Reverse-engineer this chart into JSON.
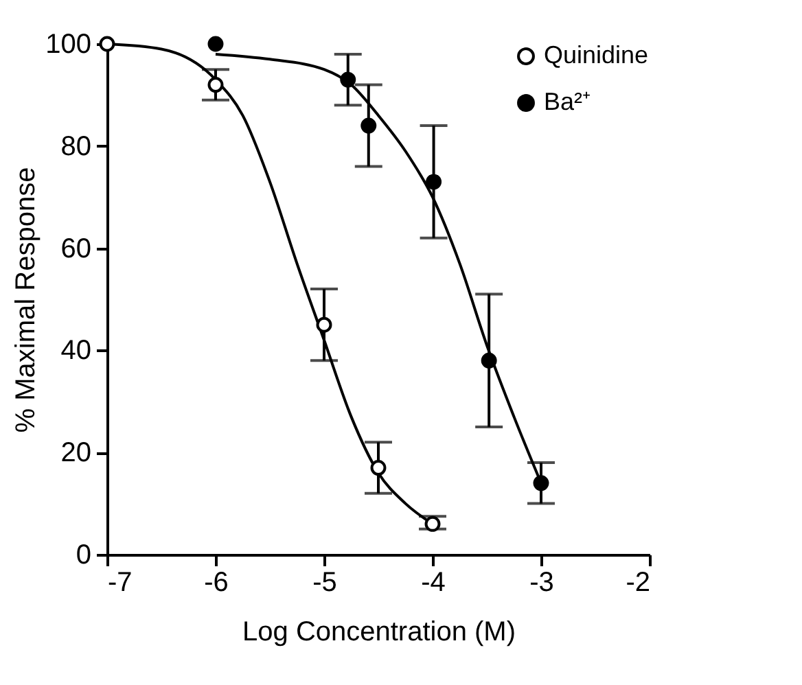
{
  "chart_data": {
    "type": "scatter",
    "xlabel": "Log Concentration (M)",
    "ylabel": "% Maximal Response",
    "xlim": [
      -7,
      -2
    ],
    "xticks": [
      -7,
      -6,
      -5,
      -4,
      -3,
      -2
    ],
    "ylim": [
      0,
      100
    ],
    "yticks": [
      0,
      20,
      40,
      60,
      80,
      100
    ],
    "grid": false,
    "legend": "top right",
    "series": [
      {
        "name": "Quinidine",
        "color": "#000000",
        "marker": "circle",
        "x": [
          -7,
          -6,
          -5,
          -4.5,
          -4
        ],
        "values": [
          100,
          92,
          45,
          17,
          6
        ],
        "errors": [
          null,
          [
            89,
            95
          ],
          [
            38,
            52
          ],
          [
            12,
            22
          ],
          [
            5,
            7.5
          ]
        ]
      },
      {
        "name": "Ba²⁺",
        "color": "#000000",
        "marker": "circle",
        "x": [
          -6,
          -4.78,
          -4.59,
          -3.99,
          -3.48,
          -3.0
        ],
        "values": [
          100,
          93,
          84,
          73,
          38,
          14
        ],
        "errors": [
          null,
          [
            88,
            98
          ],
          [
            76,
            92
          ],
          [
            62,
            84
          ],
          [
            25,
            51
          ],
          [
            10,
            18
          ]
        ]
      },
      {
        "type": "line",
        "marker": "none",
        "color": "#000000",
        "x": [
          -7,
          -6.5,
          -6,
          -5.75,
          -5.5,
          -5.25,
          -5,
          -4.75,
          -4.5,
          -4.25,
          -4
        ],
        "values": [
          100,
          99,
          93,
          86,
          73,
          57,
          42,
          27,
          16,
          10,
          6
        ]
      },
      {
        "type": "line",
        "marker": "none",
        "color": "#000000",
        "x": [
          -6,
          -5.5,
          -5,
          -4.75,
          -4.5,
          -4.25,
          -4,
          -3.75,
          -3.5,
          -3.25,
          -3
        ],
        "values": [
          98,
          97,
          95,
          92,
          86,
          79,
          70,
          57,
          41,
          27,
          14
        ]
      }
    ]
  }
}
